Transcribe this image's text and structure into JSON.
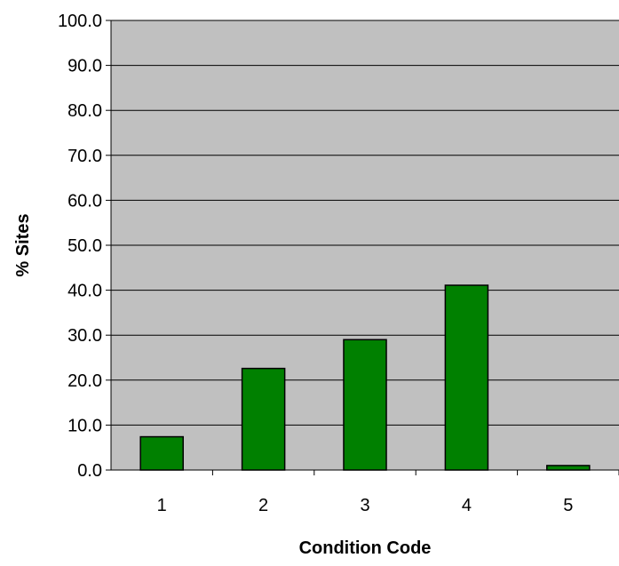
{
  "chart_data": {
    "type": "bar",
    "title": "",
    "xlabel": "Condition Code",
    "ylabel": "% Sites",
    "categories": [
      "1",
      "2",
      "3",
      "4",
      "5"
    ],
    "values": [
      7.4,
      22.6,
      29.0,
      41.1,
      1.0
    ],
    "ylim": [
      0,
      100
    ],
    "yticks": [
      "0.0",
      "10.0",
      "20.0",
      "30.0",
      "40.0",
      "50.0",
      "60.0",
      "70.0",
      "80.0",
      "90.0",
      "100.0"
    ],
    "grid": true,
    "legend": "none",
    "colors": {
      "bar_fill": "#008000",
      "bar_stroke": "#000000",
      "plot_background": "#c0c0c0",
      "gridline": "#000000"
    }
  }
}
